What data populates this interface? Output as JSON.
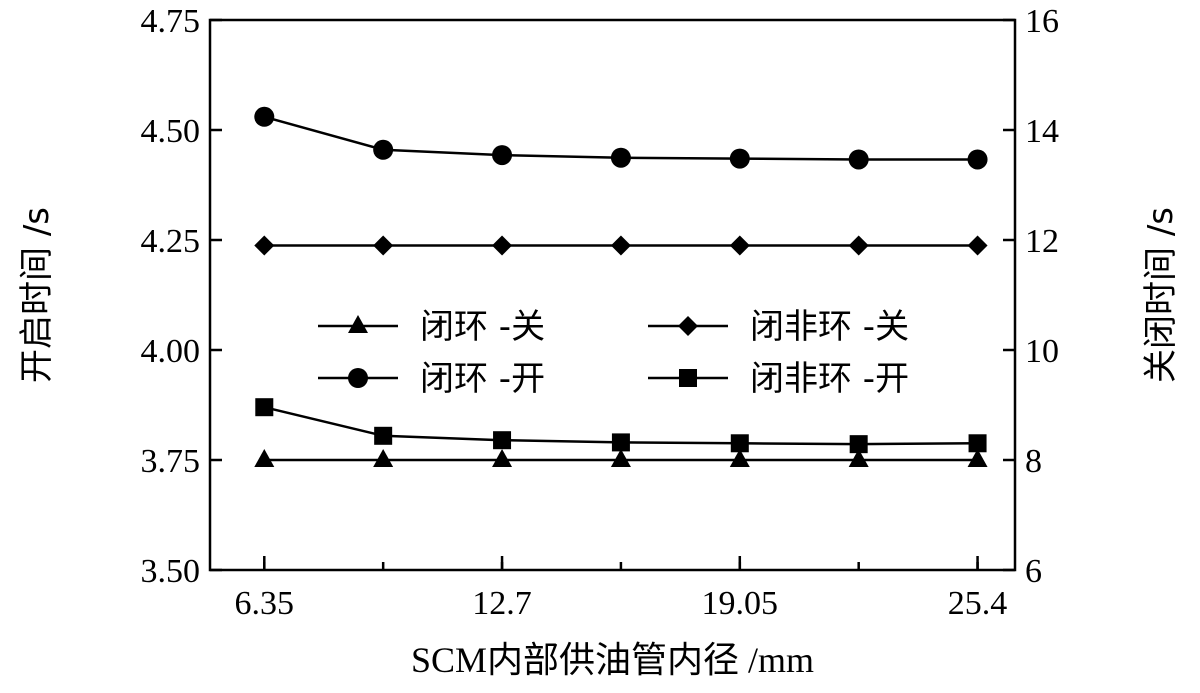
{
  "chart_data": {
    "type": "line",
    "xlabel": "SCM内部供油管内径 /mm",
    "ylabel_left": "开启时间 /s",
    "ylabel_right": "关闭时间 /s",
    "x": [
      6.35,
      9.525,
      12.7,
      15.875,
      19.05,
      22.225,
      25.4
    ],
    "x_ticks": [
      "6.35",
      "12.7",
      "19.05",
      "25.4"
    ],
    "x_tick_values": [
      6.35,
      12.7,
      19.05,
      25.4
    ],
    "xlim": [
      4.9,
      26.4
    ],
    "ylim_left": [
      3.5,
      4.75
    ],
    "ylim_right": [
      6,
      16
    ],
    "yticks_left": [
      "3.50",
      "3.75",
      "4.00",
      "4.25",
      "4.50",
      "4.75"
    ],
    "yticks_right": [
      "6",
      "8",
      "10",
      "12",
      "14",
      "16"
    ],
    "legend_position": "center",
    "grid": false,
    "series": [
      {
        "name": "闭环 -关",
        "marker": "triangle",
        "axis": "right",
        "values": [
          8.0,
          8.0,
          8.0,
          8.0,
          8.0,
          8.0,
          8.0
        ]
      },
      {
        "name": "闭非环 -关",
        "marker": "diamond",
        "axis": "right",
        "values": [
          11.9,
          11.9,
          11.9,
          11.9,
          11.9,
          11.9,
          11.9
        ]
      },
      {
        "name": "闭环 -开",
        "marker": "circle",
        "axis": "left",
        "values": [
          4.53,
          4.455,
          4.443,
          4.437,
          4.435,
          4.433,
          4.433
        ]
      },
      {
        "name": "闭非环 -开",
        "marker": "square",
        "axis": "left",
        "values": [
          3.87,
          3.805,
          3.795,
          3.79,
          3.788,
          3.786,
          3.788
        ]
      }
    ]
  }
}
